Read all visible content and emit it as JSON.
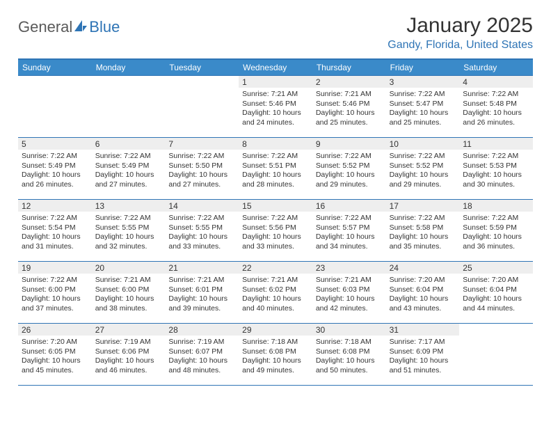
{
  "brand": {
    "part1": "General",
    "part2": "Blue"
  },
  "title": "January 2025",
  "location": "Gandy, Florida, United States",
  "style": {
    "header_bg": "#3a8ac9",
    "accent_rule": "#2e74b5",
    "daynum_bg": "#eeeeee",
    "text": "#333333",
    "page_bg": "#ffffff",
    "title_fontsize": 30,
    "location_fontsize": 16,
    "weekday_fontsize": 12,
    "body_fontsize": 10.5
  },
  "weekdays": [
    "Sunday",
    "Monday",
    "Tuesday",
    "Wednesday",
    "Thursday",
    "Friday",
    "Saturday"
  ],
  "weeks": [
    [
      null,
      null,
      null,
      {
        "n": "1",
        "sr": "Sunrise: 7:21 AM",
        "ss": "Sunset: 5:46 PM",
        "d1": "Daylight: 10 hours",
        "d2": "and 24 minutes."
      },
      {
        "n": "2",
        "sr": "Sunrise: 7:21 AM",
        "ss": "Sunset: 5:46 PM",
        "d1": "Daylight: 10 hours",
        "d2": "and 25 minutes."
      },
      {
        "n": "3",
        "sr": "Sunrise: 7:22 AM",
        "ss": "Sunset: 5:47 PM",
        "d1": "Daylight: 10 hours",
        "d2": "and 25 minutes."
      },
      {
        "n": "4",
        "sr": "Sunrise: 7:22 AM",
        "ss": "Sunset: 5:48 PM",
        "d1": "Daylight: 10 hours",
        "d2": "and 26 minutes."
      }
    ],
    [
      {
        "n": "5",
        "sr": "Sunrise: 7:22 AM",
        "ss": "Sunset: 5:49 PM",
        "d1": "Daylight: 10 hours",
        "d2": "and 26 minutes."
      },
      {
        "n": "6",
        "sr": "Sunrise: 7:22 AM",
        "ss": "Sunset: 5:49 PM",
        "d1": "Daylight: 10 hours",
        "d2": "and 27 minutes."
      },
      {
        "n": "7",
        "sr": "Sunrise: 7:22 AM",
        "ss": "Sunset: 5:50 PM",
        "d1": "Daylight: 10 hours",
        "d2": "and 27 minutes."
      },
      {
        "n": "8",
        "sr": "Sunrise: 7:22 AM",
        "ss": "Sunset: 5:51 PM",
        "d1": "Daylight: 10 hours",
        "d2": "and 28 minutes."
      },
      {
        "n": "9",
        "sr": "Sunrise: 7:22 AM",
        "ss": "Sunset: 5:52 PM",
        "d1": "Daylight: 10 hours",
        "d2": "and 29 minutes."
      },
      {
        "n": "10",
        "sr": "Sunrise: 7:22 AM",
        "ss": "Sunset: 5:52 PM",
        "d1": "Daylight: 10 hours",
        "d2": "and 29 minutes."
      },
      {
        "n": "11",
        "sr": "Sunrise: 7:22 AM",
        "ss": "Sunset: 5:53 PM",
        "d1": "Daylight: 10 hours",
        "d2": "and 30 minutes."
      }
    ],
    [
      {
        "n": "12",
        "sr": "Sunrise: 7:22 AM",
        "ss": "Sunset: 5:54 PM",
        "d1": "Daylight: 10 hours",
        "d2": "and 31 minutes."
      },
      {
        "n": "13",
        "sr": "Sunrise: 7:22 AM",
        "ss": "Sunset: 5:55 PM",
        "d1": "Daylight: 10 hours",
        "d2": "and 32 minutes."
      },
      {
        "n": "14",
        "sr": "Sunrise: 7:22 AM",
        "ss": "Sunset: 5:55 PM",
        "d1": "Daylight: 10 hours",
        "d2": "and 33 minutes."
      },
      {
        "n": "15",
        "sr": "Sunrise: 7:22 AM",
        "ss": "Sunset: 5:56 PM",
        "d1": "Daylight: 10 hours",
        "d2": "and 33 minutes."
      },
      {
        "n": "16",
        "sr": "Sunrise: 7:22 AM",
        "ss": "Sunset: 5:57 PM",
        "d1": "Daylight: 10 hours",
        "d2": "and 34 minutes."
      },
      {
        "n": "17",
        "sr": "Sunrise: 7:22 AM",
        "ss": "Sunset: 5:58 PM",
        "d1": "Daylight: 10 hours",
        "d2": "and 35 minutes."
      },
      {
        "n": "18",
        "sr": "Sunrise: 7:22 AM",
        "ss": "Sunset: 5:59 PM",
        "d1": "Daylight: 10 hours",
        "d2": "and 36 minutes."
      }
    ],
    [
      {
        "n": "19",
        "sr": "Sunrise: 7:22 AM",
        "ss": "Sunset: 6:00 PM",
        "d1": "Daylight: 10 hours",
        "d2": "and 37 minutes."
      },
      {
        "n": "20",
        "sr": "Sunrise: 7:21 AM",
        "ss": "Sunset: 6:00 PM",
        "d1": "Daylight: 10 hours",
        "d2": "and 38 minutes."
      },
      {
        "n": "21",
        "sr": "Sunrise: 7:21 AM",
        "ss": "Sunset: 6:01 PM",
        "d1": "Daylight: 10 hours",
        "d2": "and 39 minutes."
      },
      {
        "n": "22",
        "sr": "Sunrise: 7:21 AM",
        "ss": "Sunset: 6:02 PM",
        "d1": "Daylight: 10 hours",
        "d2": "and 40 minutes."
      },
      {
        "n": "23",
        "sr": "Sunrise: 7:21 AM",
        "ss": "Sunset: 6:03 PM",
        "d1": "Daylight: 10 hours",
        "d2": "and 42 minutes."
      },
      {
        "n": "24",
        "sr": "Sunrise: 7:20 AM",
        "ss": "Sunset: 6:04 PM",
        "d1": "Daylight: 10 hours",
        "d2": "and 43 minutes."
      },
      {
        "n": "25",
        "sr": "Sunrise: 7:20 AM",
        "ss": "Sunset: 6:04 PM",
        "d1": "Daylight: 10 hours",
        "d2": "and 44 minutes."
      }
    ],
    [
      {
        "n": "26",
        "sr": "Sunrise: 7:20 AM",
        "ss": "Sunset: 6:05 PM",
        "d1": "Daylight: 10 hours",
        "d2": "and 45 minutes."
      },
      {
        "n": "27",
        "sr": "Sunrise: 7:19 AM",
        "ss": "Sunset: 6:06 PM",
        "d1": "Daylight: 10 hours",
        "d2": "and 46 minutes."
      },
      {
        "n": "28",
        "sr": "Sunrise: 7:19 AM",
        "ss": "Sunset: 6:07 PM",
        "d1": "Daylight: 10 hours",
        "d2": "and 48 minutes."
      },
      {
        "n": "29",
        "sr": "Sunrise: 7:18 AM",
        "ss": "Sunset: 6:08 PM",
        "d1": "Daylight: 10 hours",
        "d2": "and 49 minutes."
      },
      {
        "n": "30",
        "sr": "Sunrise: 7:18 AM",
        "ss": "Sunset: 6:08 PM",
        "d1": "Daylight: 10 hours",
        "d2": "and 50 minutes."
      },
      {
        "n": "31",
        "sr": "Sunrise: 7:17 AM",
        "ss": "Sunset: 6:09 PM",
        "d1": "Daylight: 10 hours",
        "d2": "and 51 minutes."
      },
      null
    ]
  ]
}
